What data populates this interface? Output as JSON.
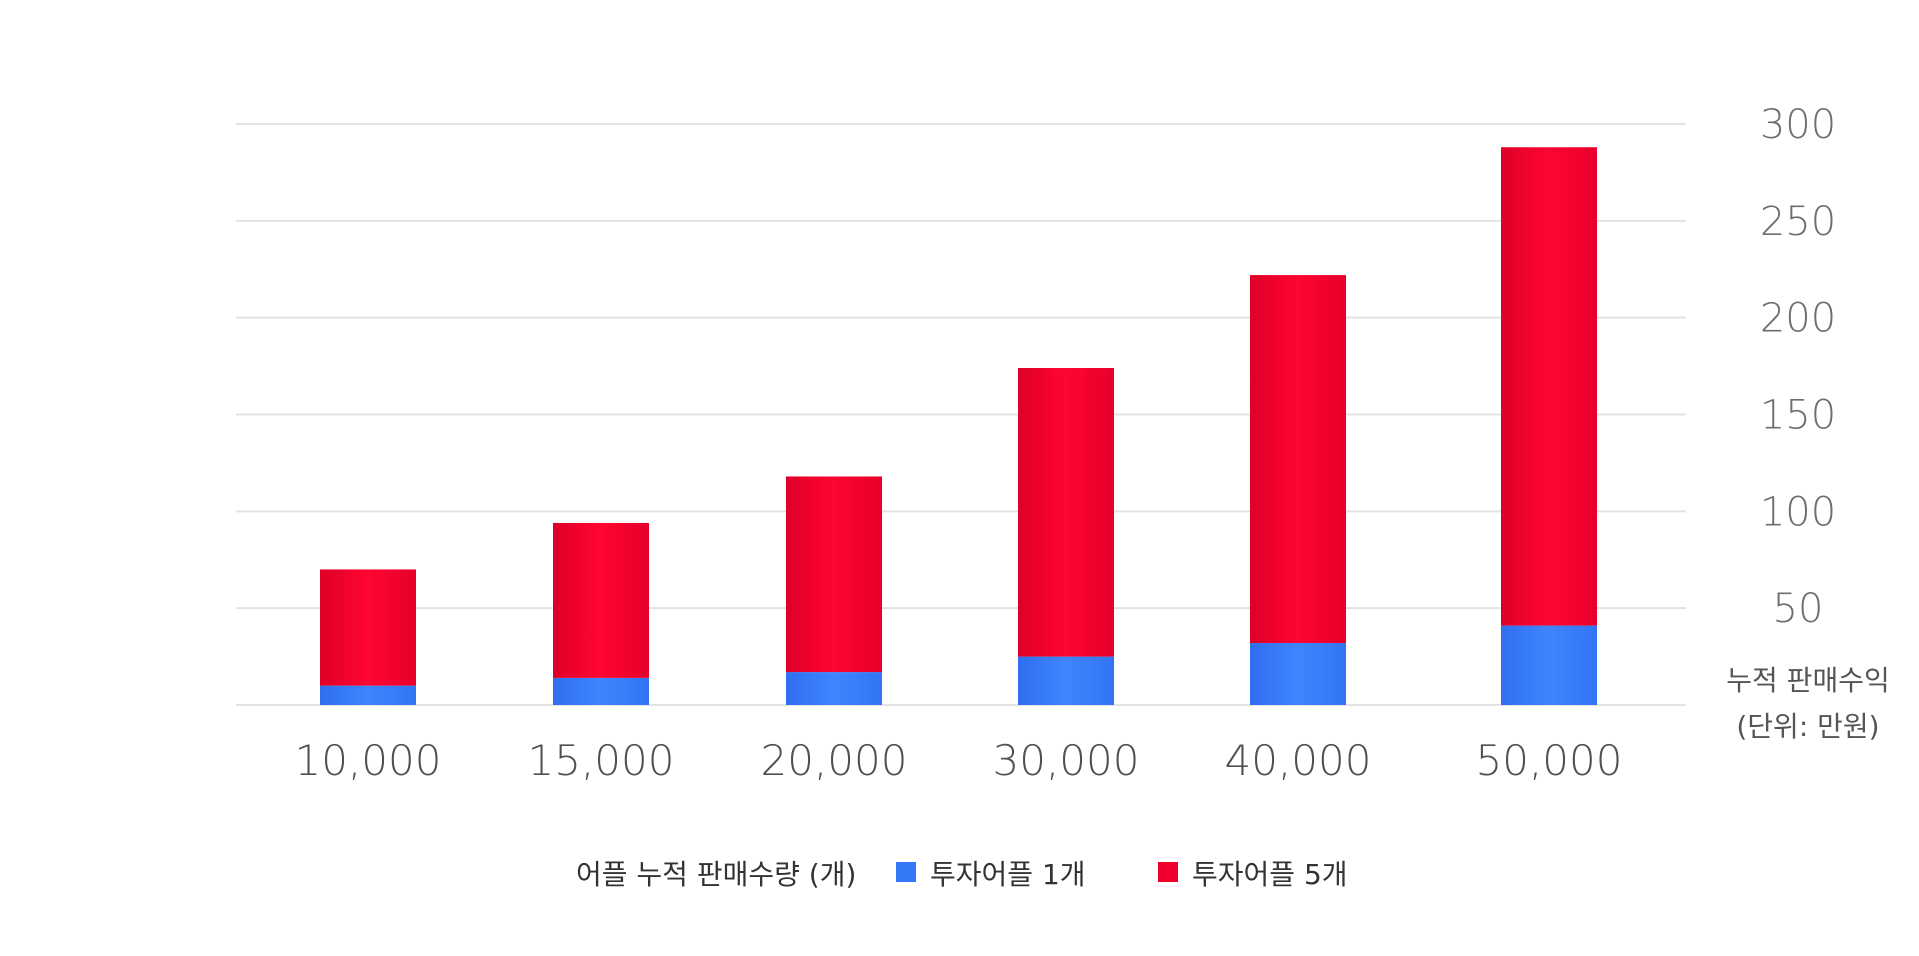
{
  "chart_data": {
    "type": "bar",
    "stacked": true,
    "categories": [
      "10,000",
      "15,000",
      "20,000",
      "30,000",
      "40,000",
      "50,000"
    ],
    "series": [
      {
        "name": "투자어플 1개",
        "color": "#3478f6",
        "values": [
          10,
          14,
          17,
          25,
          32,
          41
        ]
      },
      {
        "name": "투자어플 5개",
        "color": "#f0002d",
        "values": [
          60,
          80,
          101,
          149,
          190,
          247
        ]
      }
    ],
    "yticks": [
      "300",
      "250",
      "200",
      "150",
      "100",
      "50"
    ],
    "ylim": [
      0,
      300
    ],
    "grid": true,
    "y_axis_side": "right",
    "ylabel_line1": "누적 판매수익",
    "ylabel_line2": "(단위: 만원)",
    "legend_title": "어플 누적 판매수량 (개)",
    "legend_placement": "bottom-center"
  }
}
